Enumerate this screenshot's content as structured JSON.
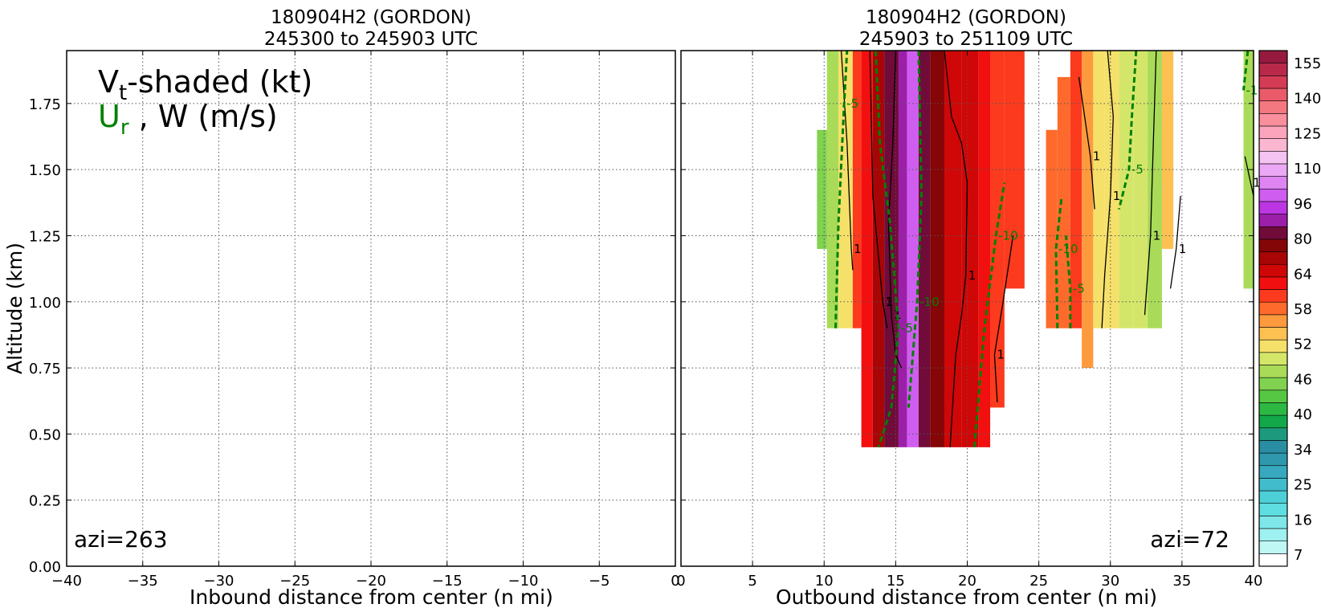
{
  "left_panel": {
    "title_line1": "180904H2 (GORDON)",
    "title_line2": "245300 to 245903 UTC",
    "xlabel": "Inbound distance from center (n mi)",
    "azimuth_label": "azi=263",
    "legend_vt_main": "V",
    "legend_vt_sub": "t",
    "legend_vt_rest": "-shaded (kt)",
    "legend_ur_main": "U",
    "legend_ur_sub": "r",
    "legend_ur_rest": " , W (m/s)"
  },
  "right_panel": {
    "title_line1": "180904H2 (GORDON)",
    "title_line2": "245903 to 251109 UTC",
    "xlabel": "Outbound distance from center (n mi)",
    "azimuth_label": "azi=72"
  },
  "ylabel": "Altitude (km)",
  "colors": {
    "ur_contour": "#008000",
    "w_contour": "#000000",
    "grid": "#555555"
  },
  "chart_data": [
    {
      "type": "heatmap",
      "panel": "left",
      "title": "180904H2 (GORDON) 245300 to 245903 UTC",
      "xlabel": "Inbound distance from center (n mi)",
      "ylabel": "Altitude (km)",
      "xlim": [
        -40,
        0
      ],
      "ylim": [
        0,
        1.95
      ],
      "x_ticks": [
        "−40",
        "−35",
        "−30",
        "−25",
        "−20",
        "−15",
        "−10",
        "−5",
        "0"
      ],
      "x_tick_values": [
        -40,
        -35,
        -30,
        -25,
        -20,
        -15,
        -10,
        -5,
        0
      ],
      "y_ticks": [
        "0.00",
        "0.25",
        "0.50",
        "0.75",
        "1.00",
        "1.25",
        "1.50",
        "1.75"
      ],
      "y_tick_values": [
        0,
        0.25,
        0.5,
        0.75,
        1.0,
        1.25,
        1.5,
        1.75
      ],
      "grid": true,
      "vt_columns": []
    },
    {
      "type": "heatmap",
      "panel": "right",
      "title": "180904H2 (GORDON) 245903 to 251109 UTC",
      "xlabel": "Outbound distance from center (n mi)",
      "xlim": [
        0,
        40
      ],
      "ylim": [
        0,
        1.95
      ],
      "x_ticks": [
        "0",
        "5",
        "10",
        "15",
        "20",
        "25",
        "30",
        "35",
        "40"
      ],
      "x_tick_values": [
        0,
        5,
        10,
        15,
        20,
        25,
        30,
        35,
        40
      ],
      "grid": true,
      "vt_columns": [
        {
          "x0": 9.5,
          "x1": 10.2,
          "zmin": 1.2,
          "zmax": 1.65,
          "vt": 40
        },
        {
          "x0": 10.2,
          "x1": 11.0,
          "zmin": 0.9,
          "zmax": 1.95,
          "vt": 43
        },
        {
          "x0": 11.0,
          "x1": 12.0,
          "zmin": 0.9,
          "zmax": 1.95,
          "vt": 47
        },
        {
          "x0": 12.0,
          "x1": 12.6,
          "zmin": 0.9,
          "zmax": 1.95,
          "vt": 55
        },
        {
          "x0": 12.6,
          "x1": 13.4,
          "zmin": 0.45,
          "zmax": 1.95,
          "vt": 56
        },
        {
          "x0": 13.4,
          "x1": 14.2,
          "zmin": 0.45,
          "zmax": 1.95,
          "vt": 60
        },
        {
          "x0": 14.2,
          "x1": 15.2,
          "zmin": 0.45,
          "zmax": 1.95,
          "vt": 64
        },
        {
          "x0": 15.2,
          "x1": 15.8,
          "zmin": 0.45,
          "zmax": 1.95,
          "vt": 68
        },
        {
          "x0": 15.8,
          "x1": 16.6,
          "zmin": 0.45,
          "zmax": 1.95,
          "vt": 76
        },
        {
          "x0": 16.6,
          "x1": 17.4,
          "zmin": 0.45,
          "zmax": 1.95,
          "vt": 66
        },
        {
          "x0": 17.4,
          "x1": 18.4,
          "zmin": 0.45,
          "zmax": 1.95,
          "vt": 62
        },
        {
          "x0": 18.4,
          "x1": 19.6,
          "zmin": 0.45,
          "zmax": 1.95,
          "vt": 59
        },
        {
          "x0": 19.6,
          "x1": 20.8,
          "zmin": 0.45,
          "zmax": 1.95,
          "vt": 58
        },
        {
          "x0": 20.8,
          "x1": 21.6,
          "zmin": 0.45,
          "zmax": 1.95,
          "vt": 56
        },
        {
          "x0": 21.6,
          "x1": 22.6,
          "zmin": 0.6,
          "zmax": 1.95,
          "vt": 55
        },
        {
          "x0": 22.6,
          "x1": 24.0,
          "zmin": 1.05,
          "zmax": 1.95,
          "vt": 54
        },
        {
          "x0": 25.5,
          "x1": 26.3,
          "zmin": 0.9,
          "zmax": 1.65,
          "vt": 52
        },
        {
          "x0": 26.3,
          "x1": 27.2,
          "zmin": 0.9,
          "zmax": 1.85,
          "vt": 53
        },
        {
          "x0": 27.2,
          "x1": 28.0,
          "zmin": 0.9,
          "zmax": 1.95,
          "vt": 54
        },
        {
          "x0": 28.0,
          "x1": 28.8,
          "zmin": 0.75,
          "zmax": 1.95,
          "vt": 50
        },
        {
          "x0": 28.8,
          "x1": 29.6,
          "zmin": 0.9,
          "zmax": 1.95,
          "vt": 47
        },
        {
          "x0": 29.6,
          "x1": 30.6,
          "zmin": 0.9,
          "zmax": 1.95,
          "vt": 46
        },
        {
          "x0": 30.6,
          "x1": 31.6,
          "zmin": 0.9,
          "zmax": 1.95,
          "vt": 45
        },
        {
          "x0": 31.6,
          "x1": 32.6,
          "zmin": 0.9,
          "zmax": 1.95,
          "vt": 44
        },
        {
          "x0": 32.6,
          "x1": 33.6,
          "zmin": 0.9,
          "zmax": 1.95,
          "vt": 43
        },
        {
          "x0": 33.6,
          "x1": 34.4,
          "zmin": 1.2,
          "zmax": 1.95,
          "vt": 48
        },
        {
          "x0": 39.3,
          "x1": 40.0,
          "zmin": 1.05,
          "zmax": 1.95,
          "vt": 43
        }
      ],
      "ur_contours": [
        {
          "label": "-5",
          "points": [
            [
              10.8,
              0.9
            ],
            [
              11.0,
              1.3
            ],
            [
              11.4,
              1.75
            ],
            [
              11.6,
              1.95
            ]
          ]
        },
        {
          "label": "-5",
          "points": [
            [
              13.6,
              1.95
            ],
            [
              13.9,
              1.6
            ],
            [
              14.6,
              1.3
            ],
            [
              15.2,
              0.9
            ],
            [
              14.7,
              0.6
            ],
            [
              13.8,
              0.45
            ]
          ]
        },
        {
          "label": "-10",
          "points": [
            [
              16.6,
              1.95
            ],
            [
              16.8,
              1.4
            ],
            [
              16.5,
              1.0
            ],
            [
              15.9,
              0.6
            ]
          ]
        },
        {
          "label": "-10",
          "points": [
            [
              20.5,
              0.45
            ],
            [
              21.2,
              0.9
            ],
            [
              22.0,
              1.25
            ],
            [
              22.6,
              1.45
            ]
          ]
        },
        {
          "label": "-10",
          "points": [
            [
              26.3,
              0.9
            ],
            [
              26.2,
              1.2
            ],
            [
              26.6,
              1.4
            ]
          ]
        },
        {
          "label": "-5",
          "points": [
            [
              27.2,
              0.9
            ],
            [
              27.2,
              1.05
            ],
            [
              26.9,
              1.25
            ]
          ]
        },
        {
          "label": "-5",
          "points": [
            [
              31.8,
              1.95
            ],
            [
              31.5,
              1.7
            ],
            [
              31.3,
              1.5
            ],
            [
              30.6,
              1.35
            ]
          ]
        },
        {
          "label": "-10",
          "points": [
            [
              39.6,
              1.95
            ],
            [
              39.3,
              1.8
            ]
          ]
        }
      ],
      "w_contours": [
        {
          "label": "1",
          "points": [
            [
              11.2,
              1.95
            ],
            [
              11.6,
              1.6
            ],
            [
              11.9,
              1.2
            ],
            [
              12.0,
              1.12
            ]
          ]
        },
        {
          "label": "1",
          "points": [
            [
              13.2,
              1.95
            ],
            [
              13.4,
              1.4
            ],
            [
              14.1,
              1.0
            ],
            [
              14.4,
              0.9
            ]
          ]
        },
        {
          "label": "1",
          "points": [
            [
              15.0,
              1.95
            ],
            [
              14.8,
              1.6
            ],
            [
              14.5,
              1.3
            ],
            [
              14.7,
              0.95
            ],
            [
              15.0,
              0.8
            ],
            [
              15.4,
              0.75
            ]
          ]
        },
        {
          "label": "1",
          "points": [
            [
              18.4,
              1.95
            ],
            [
              18.9,
              1.7
            ],
            [
              19.6,
              1.6
            ],
            [
              20.0,
              1.45
            ],
            [
              19.9,
              1.1
            ],
            [
              19.6,
              0.95
            ],
            [
              19.2,
              0.8
            ],
            [
              18.8,
              0.45
            ]
          ]
        },
        {
          "label": "1",
          "points": [
            [
              23.2,
              1.25
            ],
            [
              22.5,
              1.0
            ],
            [
              21.9,
              0.8
            ],
            [
              22.1,
              0.62
            ]
          ]
        },
        {
          "label": "1",
          "points": [
            [
              27.8,
              1.85
            ],
            [
              28.2,
              1.7
            ],
            [
              28.6,
              1.55
            ],
            [
              28.9,
              1.35
            ]
          ]
        },
        {
          "label": "1",
          "points": [
            [
              29.8,
              1.95
            ],
            [
              30.2,
              1.7
            ],
            [
              30.0,
              1.4
            ],
            [
              29.6,
              1.1
            ],
            [
              29.4,
              0.9
            ]
          ]
        },
        {
          "label": "1",
          "points": [
            [
              33.2,
              1.95
            ],
            [
              33.0,
              1.6
            ],
            [
              32.8,
              1.25
            ],
            [
              32.4,
              0.95
            ]
          ]
        },
        {
          "label": "1",
          "points": [
            [
              34.9,
              1.4
            ],
            [
              34.6,
              1.2
            ],
            [
              34.2,
              1.05
            ]
          ]
        },
        {
          "label": "1",
          "points": [
            [
              39.4,
              1.55
            ],
            [
              39.8,
              1.45
            ],
            [
              40.0,
              1.4
            ]
          ]
        }
      ]
    }
  ],
  "colorbar": {
    "tick_labels": [
      "155",
      "140",
      "125",
      "110",
      "96",
      "80",
      "64",
      "58",
      "52",
      "46",
      "40",
      "34",
      "25",
      "16",
      "7"
    ],
    "levels_low_to_high": [
      {
        "min": 0,
        "color": "#ffffff"
      },
      {
        "min": 4,
        "color": "#bff7f5"
      },
      {
        "min": 7,
        "color": "#9ff0f0"
      },
      {
        "min": 10,
        "color": "#7fe7e9"
      },
      {
        "min": 13,
        "color": "#5fdee2"
      },
      {
        "min": 16,
        "color": "#4dcfd6"
      },
      {
        "min": 19,
        "color": "#40bccc"
      },
      {
        "min": 22,
        "color": "#37a8bd"
      },
      {
        "min": 25,
        "color": "#2f98ad"
      },
      {
        "min": 28,
        "color": "#2a8ea3"
      },
      {
        "min": 31,
        "color": "#1d9a7e"
      },
      {
        "min": 34,
        "color": "#12a84a"
      },
      {
        "min": 36,
        "color": "#2cb843"
      },
      {
        "min": 38,
        "color": "#55c743"
      },
      {
        "min": 40,
        "color": "#80d24f"
      },
      {
        "min": 42,
        "color": "#a9db58"
      },
      {
        "min": 44,
        "color": "#d4e66a"
      },
      {
        "min": 46,
        "color": "#f5e06a"
      },
      {
        "min": 48,
        "color": "#fdc152"
      },
      {
        "min": 50,
        "color": "#fe9a3e"
      },
      {
        "min": 52,
        "color": "#fe6a2c"
      },
      {
        "min": 54,
        "color": "#fb3a1e"
      },
      {
        "min": 56,
        "color": "#f20f0f"
      },
      {
        "min": 58,
        "color": "#cf0707"
      },
      {
        "min": 60,
        "color": "#a80606"
      },
      {
        "min": 62,
        "color": "#840607"
      },
      {
        "min": 64,
        "color": "#700b3a"
      },
      {
        "min": 68,
        "color": "#9c1faa"
      },
      {
        "min": 72,
        "color": "#bc37e3"
      },
      {
        "min": 76,
        "color": "#cf5ef0"
      },
      {
        "min": 80,
        "color": "#de85f3"
      },
      {
        "min": 88,
        "color": "#eba8f4"
      },
      {
        "min": 96,
        "color": "#f5c3f1"
      },
      {
        "min": 103,
        "color": "#fbb6d0"
      },
      {
        "min": 110,
        "color": "#fca4bb"
      },
      {
        "min": 118,
        "color": "#f98e9d"
      },
      {
        "min": 125,
        "color": "#f47880"
      },
      {
        "min": 132,
        "color": "#ea5a68"
      },
      {
        "min": 140,
        "color": "#d43c55"
      },
      {
        "min": 148,
        "color": "#b92a4a"
      },
      {
        "min": 155,
        "color": "#961a3f"
      }
    ]
  }
}
